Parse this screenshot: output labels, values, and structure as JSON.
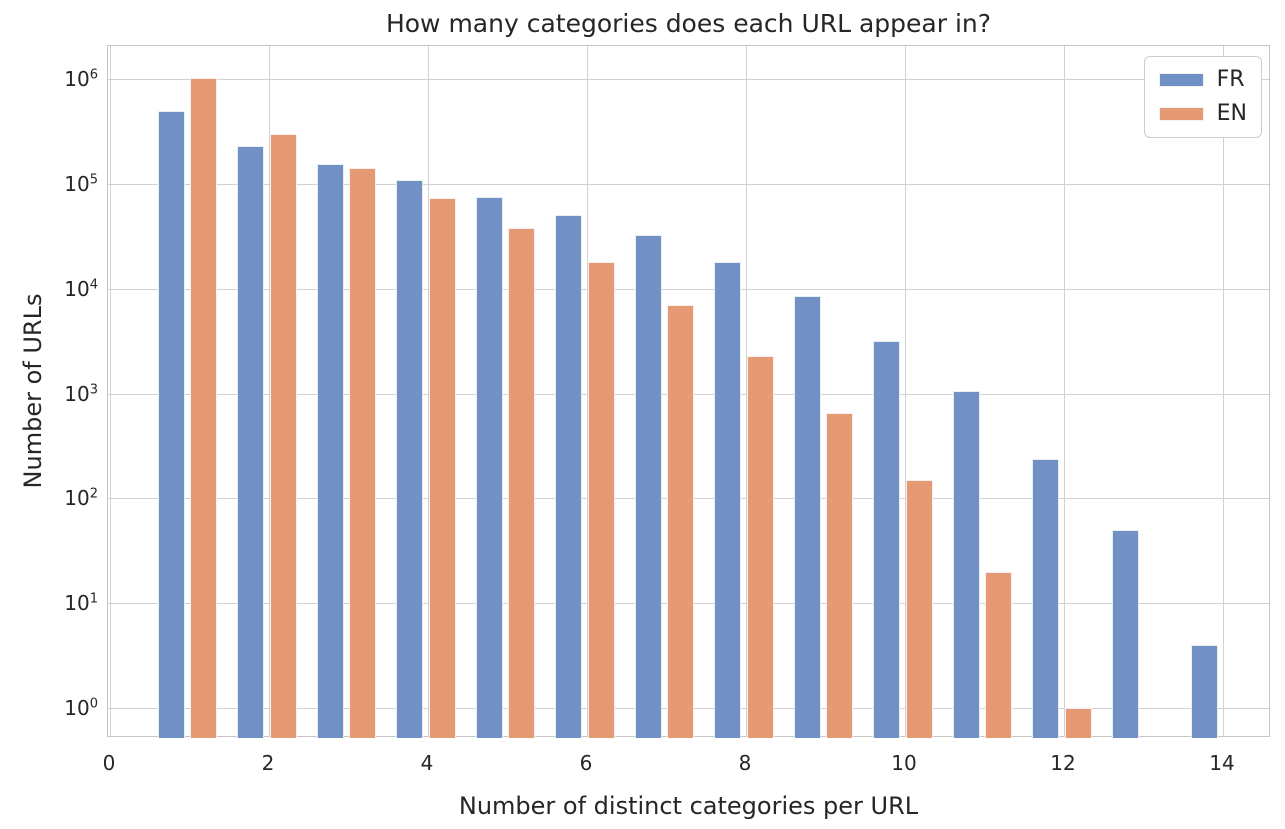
{
  "figure": {
    "title": "How many categories does each URL appear in?"
  },
  "chart_data": {
    "type": "bar",
    "title": "How many categories does each URL appear in?",
    "xlabel": "Number of distinct categories per URL",
    "ylabel": "Number of URLs",
    "yscale": "log",
    "grid": true,
    "legend_position": "upper right",
    "xlim": [
      0,
      14.6
    ],
    "ylim": [
      0.5,
      2100000
    ],
    "xticks": [
      0,
      2,
      4,
      6,
      8,
      10,
      12,
      14
    ],
    "ytick_exponents": [
      0,
      1,
      2,
      3,
      4,
      5,
      6
    ],
    "categories": [
      1,
      2,
      3,
      4,
      5,
      6,
      7,
      8,
      9,
      10,
      11,
      12,
      13,
      14
    ],
    "series": [
      {
        "name": "FR",
        "color": "#7191c4",
        "values": [
          500000,
          230000,
          155000,
          110000,
          76000,
          51000,
          33000,
          18000,
          8500,
          3200,
          1050,
          240,
          50,
          4
        ]
      },
      {
        "name": "EN",
        "color": "#e59a74",
        "values": [
          1040000,
          300000,
          143000,
          74000,
          38000,
          18000,
          7000,
          2300,
          650,
          150,
          20,
          1,
          null,
          null
        ]
      }
    ]
  },
  "colors": {
    "background": "#ffffff",
    "grid": "#d2d2d2",
    "spine": "#c6c6c6",
    "text": "#262626",
    "fr_bar": "#7191c4",
    "en_bar": "#e59a74"
  }
}
